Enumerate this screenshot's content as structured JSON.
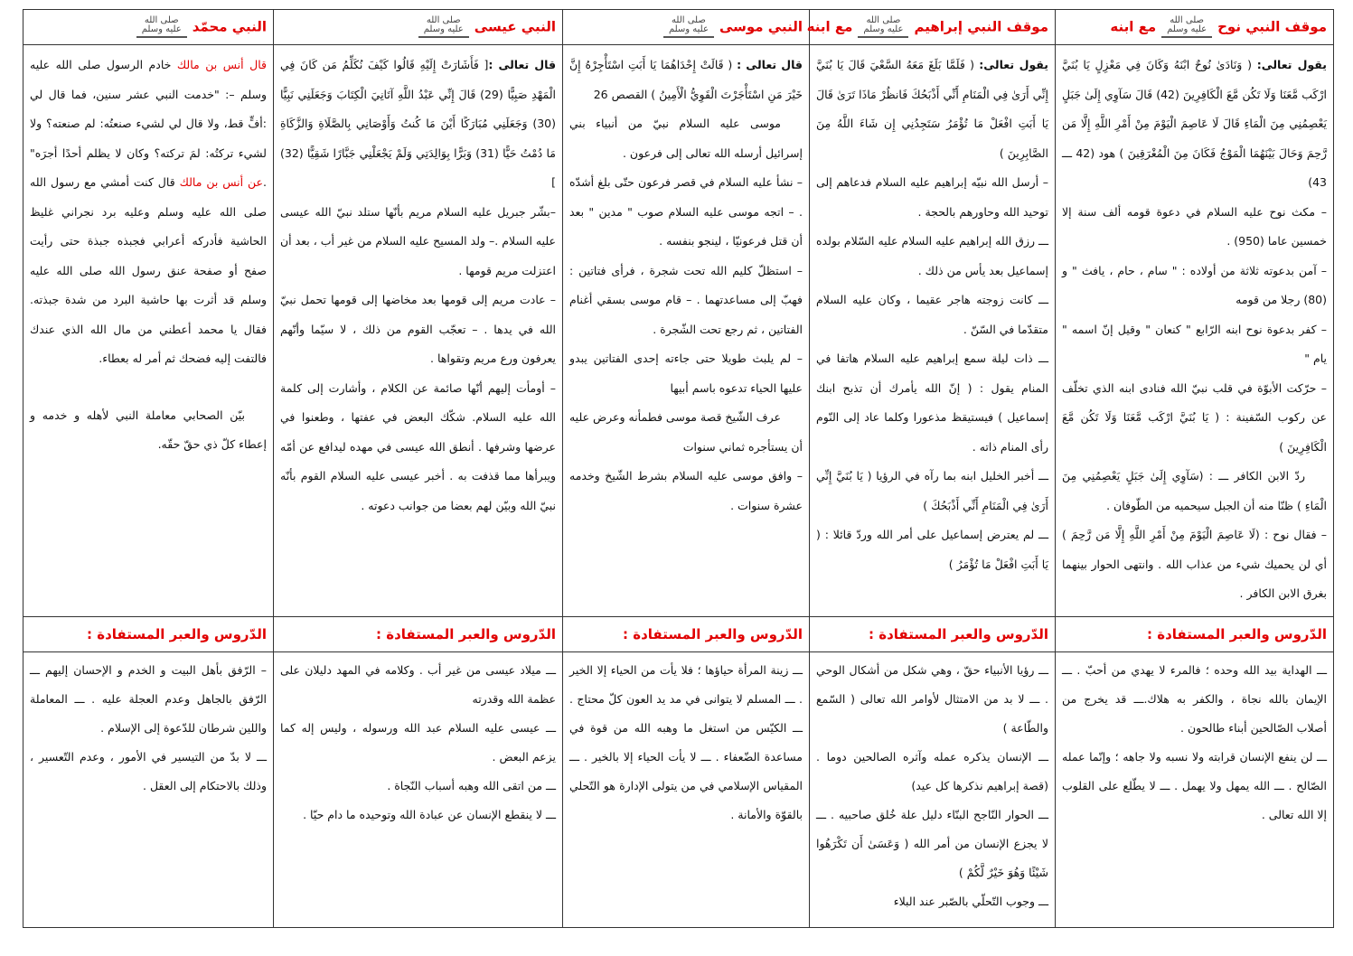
{
  "columns": [
    {
      "header": {
        "before": "موقف النبي نوح",
        "after": "مع ابنه"
      },
      "body": [
        [
          {
            "t": "يقول تعالى:",
            "s": "b"
          },
          {
            "t": " ( وَنَادَىٰ نُوحٌ ابْنَهُ وَكَانَ فِي مَعْزِلٍ يَا بُنَيَّ ارْكَب مَّعَنَا وَلَا تَكُن مَّعَ الْكَافِرِينَ (42) قَالَ سَآوِي إِلَىٰ جَبَلٍ يَعْصِمُنِي مِنَ الْمَاءِ قَالَ لَا عَاصِمَ الْيَوْمَ مِنْ أَمْرِ اللَّهِ إِلَّا مَن رَّحِمَ وَحَالَ بَيْنَهُمَا الْمَوْجُ فَكَانَ مِنَ الْمُغْرَقِينَ ) هود (42 ـــ 43)"
          }
        ],
        [
          {
            "t": "– مكث نوح عليه السلام في دعوة قومه ألف سنة إلا خمسين عاما (950) ."
          }
        ],
        [
          {
            "t": "– آمن بدعوته ثلاثة من أولاده : \" سام ، حام ، يافث \" و (80) رجلا من قومه"
          }
        ],
        [
          {
            "t": "– كفر بدعوة نوح ابنه الرّابع \" كنعان \" وقيل إنّ اسمه \" يام \""
          }
        ],
        [
          {
            "t": "– حرّكت الأبوّة في قلب نبيّ الله فنادى ابنه الذي تخلّف عن ركوب السّفينة : ( يَا بُنَيَّ ارْكَب مَّعَنَا وَلَا تَكُن مَّعَ الْكَافِرِينَ )"
          }
        ],
        [
          {
            "t": "ردّ الابن الكافر ـــ : (سَآوِي إِلَىٰ جَبَلٍ يَعْصِمُنِي مِنَ الْمَاءِ ) ظنّا منه أن الجبل سيحميه من الطّوفان .",
            "s": "ind"
          }
        ],
        [
          {
            "t": "– فقال نوح : (لَا عَاصِمَ الْيَوْمَ مِنْ أَمْرِ اللَّهِ إِلَّا مَن رَّحِمَ ) أي لن يحميك شيء من عذاب الله . وانتهى الحوار بينهما بغرق الابن الكافر ."
          }
        ]
      ],
      "lessons_header": "الدّروس والعبر المستفادة :",
      "lessons": [
        "ـــ الهداية بيد الله وحده ؛ فالمرء لا يهدي من أحبّ . ـــ الإيمان بالله نجاة ، والكفر به هلاك.ـــ قد يخرج من أصلاب الصّالحين أبناء طالحون .",
        "ـــ لن ينفع الإنسان قرابته ولا نسبه ولا جاهه ؛ وإنّما عمله الصّالح .   ـــ الله يمهل ولا يهمل . ـــ لا يطّلع على القلوب إلا الله تعالى ."
      ]
    },
    {
      "header": {
        "before": "موقف النبي إبراهيم",
        "after": "مع ابنه"
      },
      "body": [
        [
          {
            "t": "يقول تعالى:",
            "s": "b"
          },
          {
            "t": " ( فَلَمَّا بَلَغَ مَعَهُ السَّعْيَ قَالَ يَا بُنَيَّ إِنِّي أَرَىٰ فِي الْمَنَامِ أَنِّي أَذْبَحُكَ فَانظُرْ مَاذَا تَرَىٰ قَالَ يَا أَبَتِ افْعَلْ مَا تُؤْمَرُ سَتَجِدُنِي إِن شَاءَ اللَّهُ مِنَ الصَّابِرِينَ )"
          }
        ],
        [
          {
            "t": "– أرسل الله نبيّه إبراهيم عليه السلام فدعاهم إلى توحيد الله وحاورهم بالحجة ."
          }
        ],
        [
          {
            "t": "ـــ رزق الله إبراهيم عليه السلام عليه السّلام بولده إسماعيل بعد يأس من ذلك ."
          }
        ],
        [
          {
            "t": "ـــ كانت زوجته هاجر عقيما ، وكان عليه السلام متقدّما في السّنّ ."
          }
        ],
        [
          {
            "t": "ـــ ذات ليلة سمع إبراهيم عليه السلام هاتفا في المنام يقول : ( إنّ الله يأمرك أن تذبح ابنك إسماعيل ) فيستيقظ مذعورا وكلما عاد إلى النّوم رأى المنام ذاته ."
          }
        ],
        [
          {
            "t": "ـــ أخبر الخليل ابنه بما رآه في الرؤيا ( يَا بُنَيَّ إِنِّي أَرَىٰ فِي الْمَنَامِ أَنِّي أَذْبَحُكَ )"
          }
        ],
        [
          {
            "t": "ـــ لم يعترض إسماعيل على أمر الله وردّ قائلا : ( يَا أَبَتِ افْعَلْ مَا تُؤْمَرُ )"
          }
        ]
      ],
      "lessons_header": "الدّروس والعبر المستفادة :",
      "lessons": [
        "ـــ رؤيا الأنبياء حقّ ، وهي شكل من أشكال الوحي . ـــ لا بد من الامتثال لأوامر الله تعالى ( السّمع والطّاعة )",
        "ـــ الإنسان يذكره عمله وآثره الصالحين دوما . (قصة إبراهيم نذكرها كل عيد)",
        "ـــ الحوار النّاجح البنّاء دليل علة خُلق صاحبيه . ـــ لا يجزع الإنسان من أمر الله ( وَعَسَىٰ أَن تَكْرَهُوا شَيْئًا وَهُوَ خَيْرٌ لَّكُمْ )",
        "ـــ وجوب التّحلّي بالصّبر عند البلاء"
      ]
    },
    {
      "header": {
        "before": "النبي موسى",
        "after": ""
      },
      "body": [
        [
          {
            "t": "قال تعالى :",
            "s": "b"
          },
          {
            "t": " ( قَالَتْ إِحْدَاهُمَا يَا أَبَتِ اسْتَأْجِرْهُ إِنَّ خَيْرَ مَنِ اسْتَأْجَرْتَ الْقَوِيُّ الْأَمِينُ ) القصص 26"
          }
        ],
        [
          {
            "t": "موسى عليه السلام نبيّ من أنبياء بني إسرائيل أرسله الله تعالى إلى فرعون .",
            "s": "ind"
          }
        ],
        [
          {
            "t": "– نشأ عليه السلام في قصر فرعون حتّى بلغ أشدّه . – اتجه موسى عليه السلام صوب \" مدين \" بعد أن قتل فرعونيّا ، لينجو بنفسه ."
          }
        ],
        [
          {
            "t": "– استظلّ كليم الله تحت شجرة ، فرأى فتاتين : فهبّ إلى مساعدتهما . – قام موسى بسقي أغنام الفتاتين ، ثم رجع تحت الشّجرة ."
          }
        ],
        [
          {
            "t": "– لم يلبث طويلا حتى جاءته إحدى الفتاتين يبدو عليها الحياء تدعوه باسم أبيها"
          }
        ],
        [
          {
            "t": "عرف الشّيخ قصة موسى فطمأنه وعرض عليه أن يستأجره ثماني سنوات",
            "s": "ind"
          }
        ],
        [
          {
            "t": "– وافق موسى عليه السلام بشرط الشّيخ وخدمه عشرة سنوات ."
          }
        ]
      ],
      "lessons_header": "الدّروس والعبر المستفادة :",
      "lessons": [
        "ـــ زينة المرأة حياؤها ؛ فلا يأت من الحياء إلا الخير . ـــ المسلم لا يتوانى في مد يد العون كلّ محتاج . ـــ الكيّس من استغل ما وهبه الله من قوة في مساعدة الضّعفاء . ـــ لا يأت الحياء إلا بالخير . ـــ المقياس الإسلامي في من يتولى الإدارة هو التّحلي بالقوّة والأمانة ."
      ]
    },
    {
      "header": {
        "before": "النبي عيسى",
        "after": ""
      },
      "body": [
        [
          {
            "t": "قال تعالى :",
            "s": "b"
          },
          {
            "t": "[ فَأَشَارَتْ إِلَيْهِ قَالُوا كَيْفَ نُكَلِّمُ مَن كَانَ فِي الْمَهْدِ صَبِيًّا (29) قَالَ إِنِّي عَبْدُ اللَّهِ آتَانِيَ الْكِتَابَ وَجَعَلَنِي نَبِيًّا (30) وَجَعَلَنِي مُبَارَكًا أَيْنَ مَا كُنتُ وَأَوْصَانِي بِالصَّلَاةِ وَالزَّكَاةِ مَا دُمْتُ حَيًّا (31) وَبَرًّا بِوَالِدَتِي وَلَمْ يَجْعَلْنِي جَبَّارًا شَقِيًّا (32) ]"
          }
        ],
        [
          {
            "t": "–بشّر جبريل عليه السلام مريم بأنّها ستلد نبيّ الله عيسى عليه السلام .– ولد المسيح عليه السلام من غير أب ، بعد أن اعتزلت مريم قومها ."
          }
        ],
        [
          {
            "t": "– عادت مريم إلى قومها بعد مخاضها إلى قومها تحمل نبيّ الله في يدها . – تعجّب القوم من ذلك ، لا سيّما وأنّهم يعرفون ورع مريم وتقواها ."
          }
        ],
        [
          {
            "t": "– أومأت إليهم أنّها صائمة عن الكلام ، وأشارت إلى كلمة الله عليه السلام.   شكّك البعض في عفتها ، وطعنوا في عرضها وشرفها .   أنطق الله عيسى في مهده ليدافع عن أمّه ويبرأها مما قذفت به .   أخبر عيسى عليه السلام القوم بأنّه نبيّ الله وبيّن لهم بعضا من جوانب دعوته ."
          }
        ]
      ],
      "lessons_header": "الدّروس والعبر المستفادة :",
      "lessons": [
        "ـــ ميلاد عيسى من غير أب . وكلامه في المهد دليلان على عظمة الله وقدرته",
        "ـــ عيسى عليه السلام عبد الله ورسوله ، وليس إله كما يزعم البعض .",
        "ـــ من اتقى الله وهبه أسباب النّجاة .",
        "ـــ لا ينقطع الإنسان عن عبادة الله وتوحيده ما دام حيّا ."
      ]
    },
    {
      "header": {
        "before": "النبي محمّد",
        "after": ""
      },
      "body": [
        [
          {
            "t": "قال أنس بن مالك",
            "s": "red"
          },
          {
            "t": "   خادم الرسول   صلى الله عليه وسلم –: \"خدمت النبي عشر سنين، فما قال لي :أفٍّ قط، ولا قال لي لشيء صنعتُه: لم صنعته؟ ولا لشيء تركتُه: لمَ تركته؟ وكان لا يظلم أحدًا أجرَه\" ."
          },
          {
            "t": "عن أنس بن مالك",
            "s": "red"
          },
          {
            "t": " قال كنت أمشي مع رسول الله صلى الله عليه وسلم وعليه برد نجراني غليظ الحاشية فأدركه أعرابي فجبذه جبذة حتى رأيت صفح أو صفحة عنق رسول الله صلى الله عليه وسلم قد أثرت بها حاشية البرد من شدة جبذته. فقال يا محمد أعطني من مال الله الذي عندك فالتفت إليه فضحك ثم أمر له بعطاء."
          }
        ],
        [
          {
            "t": "بيّن الصحابي معاملة النبي لأهله و خدمه و إعطاء كلّ ذي حقّ حقّه.",
            "s": "ind gap"
          }
        ]
      ],
      "lessons_header": "الدّروس والعبر المستفادة :",
      "lessons": [
        "– الرّفق بأهل البيت و الخدم و الإحسان إليهم ـــ الرّفق بالجاهل وعدم العجلة عليه . ـــ المعاملة واللين شرطان للدّعوة إلى الإسلام .",
        "ـــ لا بدّ من التيسير في الأمور ، وعدم التّعسير ، وذلك بالاحتكام إلى العقل ."
      ]
    }
  ],
  "seal": {
    "line1": "صلى الله",
    "line2": "عليه وسلم"
  },
  "colors": {
    "header_red": "#e00000",
    "border": "#333333",
    "text": "#111111"
  }
}
